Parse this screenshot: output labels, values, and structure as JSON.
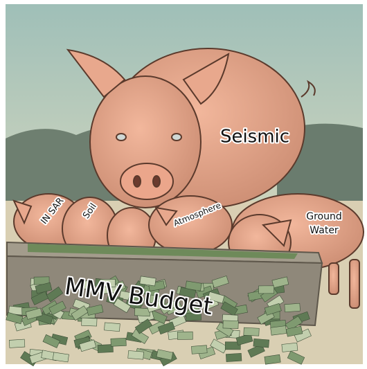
{
  "image": {
    "big_pig": "Seismic",
    "piglets": [
      {
        "lines": [
          "IN SAR"
        ]
      },
      {
        "lines": [
          "Soil"
        ]
      },
      {
        "lines": [
          "Atmosphere"
        ]
      },
      {
        "lines": [
          "Ground",
          "Water"
        ]
      }
    ],
    "trough": "MMV Budget"
  }
}
